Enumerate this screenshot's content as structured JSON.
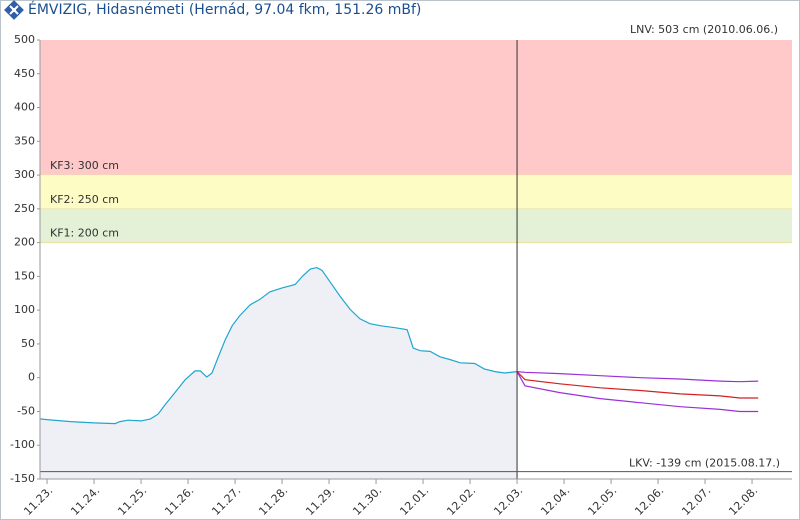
{
  "chart_data": {
    "type": "line",
    "title": "ÉMVIZIG, Hidasnémeti (Hernád, 97.04 fkm, 151.26 mBf)",
    "note": "LNV: 503 cm (2010.06.06.)",
    "xlim": [
      -0.15,
      15.85
    ],
    "xticks": [
      {
        "value": 0,
        "label": "11.23."
      },
      {
        "value": 1,
        "label": "11.24."
      },
      {
        "value": 2,
        "label": "11.25."
      },
      {
        "value": 3,
        "label": "11.26."
      },
      {
        "value": 4,
        "label": "11.27."
      },
      {
        "value": 5,
        "label": "11.28."
      },
      {
        "value": 6,
        "label": "11.29."
      },
      {
        "value": 7,
        "label": "11.30."
      },
      {
        "value": 8,
        "label": "12.01."
      },
      {
        "value": 9,
        "label": "12.02."
      },
      {
        "value": 10,
        "label": "12.03."
      },
      {
        "value": 11,
        "label": "12.04."
      },
      {
        "value": 12,
        "label": "12.05."
      },
      {
        "value": 13,
        "label": "12.06."
      },
      {
        "value": 14,
        "label": "12.07."
      },
      {
        "value": 15,
        "label": "12.08."
      }
    ],
    "ylim": [
      -150,
      500
    ],
    "yticks": [
      -150,
      -100,
      -50,
      0,
      50,
      100,
      150,
      200,
      250,
      300,
      350,
      400,
      450,
      500
    ],
    "grid": false,
    "bands": [
      {
        "from": 300,
        "to": 500,
        "color": "#ffc9c9",
        "label": "KF3: 300 cm"
      },
      {
        "from": 250,
        "to": 300,
        "color": "#fdfcc4",
        "label": "KF2: 250 cm"
      },
      {
        "from": 200,
        "to": 250,
        "color": "#e4f1d6",
        "label": "KF1: 200 cm"
      }
    ],
    "hline": {
      "value": -139,
      "color": "#555555",
      "label": "LKV: -139 cm (2015.08.17.)"
    },
    "vline": 10,
    "series": [
      {
        "color": "#1fa6cf",
        "fill": "#eef0f6",
        "x": [
          -0.15,
          0,
          0.5,
          1,
          1.45,
          1.55,
          1.72,
          2,
          2.2,
          2.36,
          2.5,
          2.72,
          2.94,
          3.15,
          3.26,
          3.4,
          3.51,
          3.64,
          3.79,
          3.94,
          4.1,
          4.32,
          4.53,
          4.74,
          5,
          5.28,
          5.43,
          5.6,
          5.74,
          5.85,
          6.02,
          6.23,
          6.45,
          6.66,
          6.87,
          7.09,
          7.4,
          7.66,
          7.79,
          7.94,
          8.15,
          8.36,
          8.57,
          8.79,
          9.1,
          9.3,
          9.53,
          9.74,
          10
        ],
        "values": [
          -61,
          -62,
          -65,
          -67,
          -68,
          -65,
          -63,
          -64,
          -61,
          -54,
          -41,
          -22,
          -3,
          10,
          10,
          1,
          7,
          30,
          56,
          77,
          92,
          108,
          116,
          127,
          133,
          138,
          150,
          161,
          163,
          159,
          142,
          121,
          101,
          87,
          80,
          77,
          74,
          71,
          44,
          40,
          39,
          31,
          27,
          22,
          21,
          13,
          9,
          7,
          9
        ]
      },
      {
        "color": "#9b30d9",
        "x": [
          10,
          10.17,
          10.91,
          11.77,
          12.62,
          13.47,
          14.32,
          14.74,
          15.13
        ],
        "values": [
          9,
          8,
          6,
          3,
          0,
          -2,
          -5,
          -6,
          -5
        ]
      },
      {
        "color": "#d42020",
        "x": [
          10,
          10.17,
          10.91,
          11.77,
          12.62,
          13.47,
          14.32,
          14.74,
          15.13
        ],
        "values": [
          9,
          -3,
          -9,
          -15,
          -19,
          -24,
          -27,
          -30,
          -30
        ]
      },
      {
        "color": "#9b30d9",
        "x": [
          10,
          10.17,
          10.91,
          11.77,
          12.62,
          13.47,
          14.32,
          14.74,
          15.13
        ],
        "values": [
          9,
          -12,
          -22,
          -31,
          -37,
          -43,
          -47,
          -50,
          -50
        ]
      }
    ]
  }
}
